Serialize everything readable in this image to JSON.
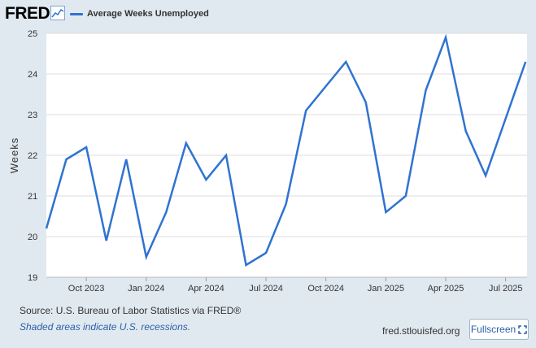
{
  "header": {
    "logo_text": "FRED"
  },
  "legend": {
    "series_label": "Average Weeks Unemployed",
    "series_color": "#2f73d1"
  },
  "chart_data": {
    "type": "line",
    "ylabel": "Weeks",
    "ylim": [
      19,
      25
    ],
    "yticks": [
      19,
      20,
      21,
      22,
      23,
      24,
      25
    ],
    "grid": true,
    "x_tick_labels": [
      "Oct 2023",
      "Jan 2024",
      "Apr 2024",
      "Jul 2024",
      "Oct 2024",
      "Jan 2025",
      "Apr 2025",
      "Jul 2025"
    ],
    "x": [
      "Aug 2023",
      "Sep 2023",
      "Oct 2023",
      "Nov 2023",
      "Dec 2023",
      "Jan 2024",
      "Feb 2024",
      "Mar 2024",
      "Apr 2024",
      "May 2024",
      "Jun 2024",
      "Jul 2024",
      "Aug 2024",
      "Sep 2024",
      "Oct 2024",
      "Nov 2024",
      "Dec 2024",
      "Jan 2025",
      "Feb 2025",
      "Mar 2025",
      "Apr 2025",
      "May 2025",
      "Jun 2025",
      "Jul 2025",
      "Aug 2025"
    ],
    "series": [
      {
        "name": "Average Weeks Unemployed",
        "color": "#2f73d1",
        "values": [
          20.2,
          21.9,
          22.2,
          19.9,
          21.9,
          19.5,
          20.6,
          22.3,
          21.4,
          22.0,
          19.3,
          19.6,
          20.8,
          23.1,
          23.7,
          24.3,
          23.3,
          20.6,
          21.0,
          23.6,
          24.9,
          22.6,
          21.5,
          22.9,
          24.3
        ]
      }
    ]
  },
  "footer": {
    "source": "Source: U.S. Bureau of Labor Statistics via FRED®",
    "recession_note": "Shaded areas indicate U.S. recessions.",
    "site": "fred.stlouisfed.org",
    "fullscreen_label": "Fullscreen"
  }
}
